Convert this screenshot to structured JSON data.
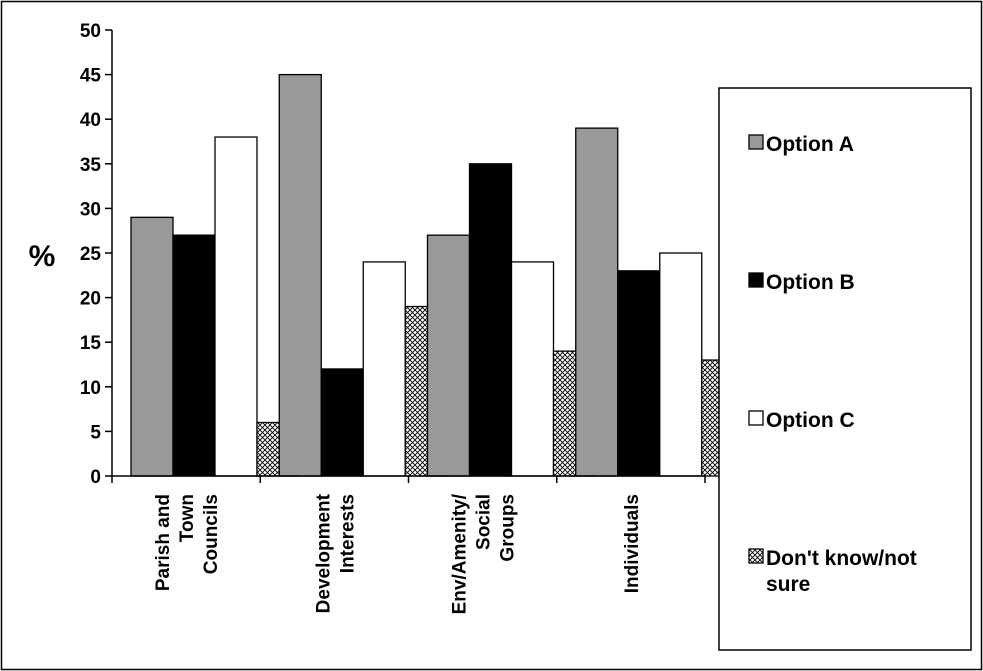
{
  "chart_data": {
    "type": "bar",
    "title": "",
    "xlabel": "",
    "ylabel": "%",
    "ylim": [
      0,
      50
    ],
    "yticks": [
      0,
      5,
      10,
      15,
      20,
      25,
      30,
      35,
      40,
      45,
      50
    ],
    "grid": false,
    "legend_position": "right",
    "categories": [
      [
        "Parish and",
        "Town",
        "Councils"
      ],
      [
        "Development",
        "Interests"
      ],
      [
        "Env/Amenity/",
        "Social",
        "Groups"
      ],
      [
        "Individuals"
      ]
    ],
    "series": [
      {
        "name": "Option A",
        "values": [
          29,
          45,
          27,
          39
        ],
        "color": "#999999",
        "pattern": "solid"
      },
      {
        "name": "Option B",
        "values": [
          27,
          12,
          35,
          23
        ],
        "color": "#000000",
        "pattern": "solid"
      },
      {
        "name": "Option C",
        "values": [
          38,
          24,
          24,
          25
        ],
        "color": "#ffffff",
        "pattern": "solid"
      },
      {
        "name": "Don't know/not sure",
        "legend_lines": [
          "Don't know/not",
          "sure"
        ],
        "values": [
          6,
          19,
          14,
          13
        ],
        "color": "#ffffff",
        "pattern": "crosshatch"
      }
    ]
  }
}
